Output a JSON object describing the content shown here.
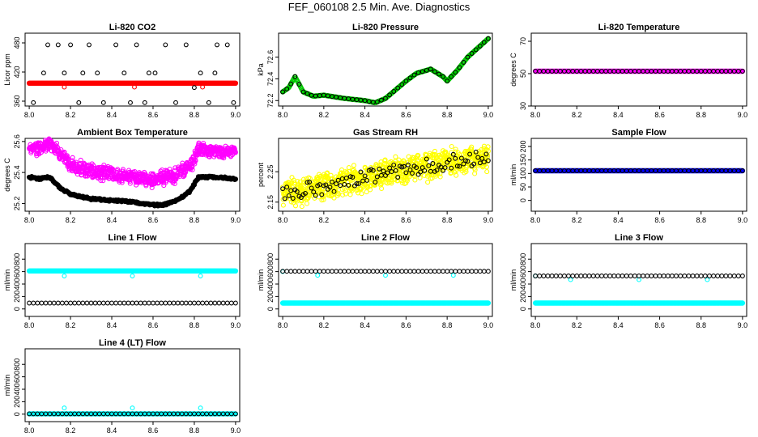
{
  "title": "FEF_060108  2.5 Min. Ave. Diagnostics",
  "chart_data": [
    {
      "id": "co2",
      "type": "scatter",
      "title": "Li-820 CO2",
      "ylabel": "Licor ppm",
      "xlim": [
        7.98,
        9.02
      ],
      "ylim": [
        350,
        500
      ],
      "xticks": [
        8.0,
        8.2,
        8.4,
        8.6,
        8.8,
        9.0
      ],
      "xtick_labels": [
        "8.0",
        "8.2",
        "8.4",
        "8.6",
        "8.8",
        "9.0"
      ],
      "yticks": [
        360,
        420,
        480
      ],
      "ytick_labels": [
        "360",
        "420",
        "480"
      ],
      "grid": false,
      "series": [
        {
          "name": "red",
          "color": "#ff0000",
          "style": "dense",
          "gen": "flat",
          "base": 397,
          "amp": 0,
          "outliers": [
            [
              8.17,
              389
            ],
            [
              8.51,
              389
            ],
            [
              8.84,
              389
            ]
          ]
        },
        {
          "name": "black",
          "color": "#000000",
          "style": "open",
          "points": [
            [
              8.02,
              357
            ],
            [
              8.07,
              418
            ],
            [
              8.09,
              476
            ],
            [
              8.14,
              476
            ],
            [
              8.17,
              418
            ],
            [
              8.2,
              476
            ],
            [
              8.24,
              357
            ],
            [
              8.29,
              476
            ],
            [
              8.33,
              418
            ],
            [
              8.36,
              357
            ],
            [
              8.42,
              476
            ],
            [
              8.46,
              418
            ],
            [
              8.49,
              357
            ],
            [
              8.52,
              476
            ],
            [
              8.56,
              357
            ],
            [
              8.61,
              418
            ],
            [
              8.66,
              476
            ],
            [
              8.71,
              357
            ],
            [
              8.76,
              476
            ],
            [
              8.8,
              388
            ],
            [
              8.83,
              418
            ],
            [
              8.87,
              357
            ],
            [
              8.91,
              476
            ],
            [
              8.96,
              476
            ],
            [
              8.99,
              357
            ],
            [
              8.26,
              418
            ],
            [
              8.58,
              418
            ],
            [
              8.9,
              418
            ]
          ]
        }
      ]
    },
    {
      "id": "pressure",
      "type": "scatter",
      "title": "Li-820 Pressure",
      "ylabel": "kPa",
      "xlim": [
        7.98,
        9.02
      ],
      "ylim": [
        72.15,
        72.82
      ],
      "xticks": [
        8.0,
        8.2,
        8.4,
        8.6,
        8.8,
        9.0
      ],
      "xtick_labels": [
        "8.0",
        "8.2",
        "8.4",
        "8.6",
        "8.8",
        "9.0"
      ],
      "yticks": [
        72.2,
        72.4,
        72.6
      ],
      "ytick_labels": [
        "72.2",
        "72.4",
        "72.6"
      ],
      "grid": false,
      "series": [
        {
          "name": "green",
          "color": "#00cc00",
          "style": "dense",
          "gen": "curve",
          "anchors": [
            [
              8.0,
              72.28
            ],
            [
              8.03,
              72.32
            ],
            [
              8.06,
              72.42
            ],
            [
              8.1,
              72.28
            ],
            [
              8.15,
              72.24
            ],
            [
              8.2,
              72.25
            ],
            [
              8.3,
              72.22
            ],
            [
              8.4,
              72.2
            ],
            [
              8.45,
              72.18
            ],
            [
              8.5,
              72.22
            ],
            [
              8.6,
              72.38
            ],
            [
              8.65,
              72.45
            ],
            [
              8.72,
              72.49
            ],
            [
              8.78,
              72.42
            ],
            [
              8.8,
              72.38
            ],
            [
              8.85,
              72.48
            ],
            [
              8.9,
              72.6
            ],
            [
              9.0,
              72.77
            ]
          ]
        },
        {
          "name": "black",
          "color": "#000000",
          "style": "open",
          "gen": "curve",
          "step": 0.02,
          "anchors": [
            [
              8.0,
              72.28
            ],
            [
              8.03,
              72.32
            ],
            [
              8.06,
              72.42
            ],
            [
              8.1,
              72.28
            ],
            [
              8.15,
              72.24
            ],
            [
              8.2,
              72.25
            ],
            [
              8.3,
              72.22
            ],
            [
              8.4,
              72.2
            ],
            [
              8.45,
              72.18
            ],
            [
              8.5,
              72.22
            ],
            [
              8.6,
              72.38
            ],
            [
              8.65,
              72.45
            ],
            [
              8.72,
              72.49
            ],
            [
              8.78,
              72.42
            ],
            [
              8.8,
              72.38
            ],
            [
              8.85,
              72.48
            ],
            [
              8.9,
              72.6
            ],
            [
              9.0,
              72.77
            ]
          ]
        }
      ]
    },
    {
      "id": "temp",
      "type": "scatter",
      "title": "Li-820 Temperature",
      "ylabel": "degrees C",
      "xlim": [
        7.98,
        9.02
      ],
      "ylim": [
        30,
        75
      ],
      "xticks": [
        8.0,
        8.2,
        8.4,
        8.6,
        8.8,
        9.0
      ],
      "xtick_labels": [
        "8.0",
        "8.2",
        "8.4",
        "8.6",
        "8.8",
        "9.0"
      ],
      "yticks": [
        30,
        50,
        70
      ],
      "ytick_labels": [
        "30",
        "50",
        "70"
      ],
      "grid": false,
      "series": [
        {
          "name": "magenta",
          "color": "#ff00ff",
          "style": "dense",
          "gen": "flat",
          "base": 51.5,
          "amp": 0
        },
        {
          "name": "black",
          "color": "#000000",
          "style": "open",
          "gen": "flat",
          "step": 0.02,
          "base": 51.5,
          "amp": 0
        }
      ]
    },
    {
      "id": "boxtemp",
      "type": "scatter",
      "title": "Ambient Box Temperature",
      "ylabel": "degrees C",
      "xlim": [
        7.98,
        9.02
      ],
      "ylim": [
        25.15,
        25.62
      ],
      "xticks": [
        8.0,
        8.2,
        8.4,
        8.6,
        8.8,
        9.0
      ],
      "xtick_labels": [
        "8.0",
        "8.2",
        "8.4",
        "8.6",
        "8.8",
        "9.0"
      ],
      "yticks": [
        25.2,
        25.4,
        25.6
      ],
      "ytick_labels": [
        "25.2",
        "25.4",
        "25.6"
      ],
      "grid": false,
      "series": [
        {
          "name": "magenta",
          "color": "#ff00ff",
          "style": "cloud",
          "spread": 0.035,
          "gen": "curve",
          "anchors": [
            [
              8.0,
              25.54
            ],
            [
              8.1,
              25.58
            ],
            [
              8.15,
              25.52
            ],
            [
              8.2,
              25.45
            ],
            [
              8.3,
              25.41
            ],
            [
              8.4,
              25.39
            ],
            [
              8.5,
              25.37
            ],
            [
              8.6,
              25.35
            ],
            [
              8.7,
              25.38
            ],
            [
              8.78,
              25.44
            ],
            [
              8.82,
              25.55
            ],
            [
              8.9,
              25.53
            ],
            [
              9.0,
              25.53
            ]
          ]
        },
        {
          "name": "black",
          "color": "#000000",
          "style": "trace",
          "gen": "curve",
          "anchors": [
            [
              8.0,
              25.37
            ],
            [
              8.05,
              25.36
            ],
            [
              8.1,
              25.37
            ],
            [
              8.15,
              25.3
            ],
            [
              8.2,
              25.26
            ],
            [
              8.3,
              25.23
            ],
            [
              8.4,
              25.22
            ],
            [
              8.5,
              25.21
            ],
            [
              8.6,
              25.19
            ],
            [
              8.65,
              25.19
            ],
            [
              8.72,
              25.22
            ],
            [
              8.78,
              25.28
            ],
            [
              8.82,
              25.37
            ],
            [
              8.9,
              25.37
            ],
            [
              9.0,
              25.36
            ]
          ]
        }
      ]
    },
    {
      "id": "rh",
      "type": "scatter",
      "title": "Gas Stream RH",
      "ylabel": "percent",
      "xlim": [
        7.98,
        9.02
      ],
      "ylim": [
        2.12,
        2.36
      ],
      "xticks": [
        8.0,
        8.2,
        8.4,
        8.6,
        8.8,
        9.0
      ],
      "xtick_labels": [
        "8.0",
        "8.2",
        "8.4",
        "8.6",
        "8.8",
        "9.0"
      ],
      "yticks": [
        2.15,
        2.25
      ],
      "ytick_labels": [
        "2.15",
        "2.25"
      ],
      "grid": false,
      "series": [
        {
          "name": "yellow",
          "color": "#ffff00",
          "style": "cloud",
          "spread": 0.035,
          "gen": "curve",
          "anchors": [
            [
              8.0,
              2.18
            ],
            [
              8.2,
              2.2
            ],
            [
              8.4,
              2.23
            ],
            [
              8.6,
              2.26
            ],
            [
              8.8,
              2.28
            ],
            [
              9.0,
              2.3
            ]
          ]
        },
        {
          "name": "black",
          "color": "#000000",
          "style": "scatter",
          "step": 0.01,
          "spread": 0.025,
          "gen": "curve",
          "anchors": [
            [
              8.0,
              2.18
            ],
            [
              8.2,
              2.2
            ],
            [
              8.4,
              2.23
            ],
            [
              8.6,
              2.26
            ],
            [
              8.8,
              2.28
            ],
            [
              9.0,
              2.3
            ]
          ]
        }
      ]
    },
    {
      "id": "sampleflow",
      "type": "scatter",
      "title": "Sample Flow",
      "ylabel": "ml/min",
      "xlim": [
        7.98,
        9.02
      ],
      "ylim": [
        -40,
        230
      ],
      "xticks": [
        8.0,
        8.2,
        8.4,
        8.6,
        8.8,
        9.0
      ],
      "xtick_labels": [
        "8.0",
        "8.2",
        "8.4",
        "8.6",
        "8.8",
        "9.0"
      ],
      "yticks": [
        0,
        50,
        100,
        150,
        200
      ],
      "ytick_labels": [
        "0",
        "50",
        "100",
        "150",
        "200"
      ],
      "grid": false,
      "series": [
        {
          "name": "blue",
          "color": "#0000ff",
          "style": "dense",
          "gen": "flat",
          "base": 110,
          "amp": 0
        },
        {
          "name": "black",
          "color": "#000000",
          "style": "open",
          "gen": "flat",
          "step": 0.02,
          "base": 110,
          "amp": 0
        }
      ]
    },
    {
      "id": "line1",
      "type": "scatter",
      "title": "Line 1 Flow",
      "ylabel": "ml/min",
      "xlim": [
        7.98,
        9.02
      ],
      "ylim": [
        -120,
        1050
      ],
      "xticks": [
        8.0,
        8.2,
        8.4,
        8.6,
        8.8,
        9.0
      ],
      "xtick_labels": [
        "8.0",
        "8.2",
        "8.4",
        "8.6",
        "8.8",
        "9.0"
      ],
      "yticks": [
        0,
        200,
        400,
        600,
        800
      ],
      "ytick_labels": [
        "0",
        "200",
        "400",
        "600",
        "800"
      ],
      "grid": false,
      "series": [
        {
          "name": "cyan",
          "color": "#00ffff",
          "style": "dense",
          "gen": "flat",
          "base": 610,
          "amp": 0,
          "outliers": [
            [
              8.17,
              530
            ],
            [
              8.5,
              530
            ],
            [
              8.83,
              530
            ]
          ]
        },
        {
          "name": "black",
          "color": "#000000",
          "style": "open",
          "gen": "flat",
          "step": 0.02,
          "base": 95,
          "amp": 0
        }
      ]
    },
    {
      "id": "line2",
      "type": "scatter",
      "title": "Line 2 Flow",
      "ylabel": "ml/min",
      "xlim": [
        7.98,
        9.02
      ],
      "ylim": [
        -120,
        1050
      ],
      "xticks": [
        8.0,
        8.2,
        8.4,
        8.6,
        8.8,
        9.0
      ],
      "xtick_labels": [
        "8.0",
        "8.2",
        "8.4",
        "8.6",
        "8.8",
        "9.0"
      ],
      "yticks": [
        0,
        200,
        400,
        600,
        800
      ],
      "ytick_labels": [
        "0",
        "200",
        "400",
        "600",
        "800"
      ],
      "grid": false,
      "series": [
        {
          "name": "cyan",
          "color": "#00ffff",
          "style": "dense",
          "gen": "flat",
          "base": 95,
          "amp": 0,
          "outliers": [
            [
              8.0,
              600
            ],
            [
              8.17,
              540
            ],
            [
              8.5,
              540
            ],
            [
              8.83,
              540
            ]
          ]
        },
        {
          "name": "black",
          "color": "#000000",
          "style": "open",
          "gen": "flat",
          "step": 0.02,
          "base": 605,
          "amp": 0
        }
      ]
    },
    {
      "id": "line3",
      "type": "scatter",
      "title": "Line 3 Flow",
      "ylabel": "ml/min",
      "xlim": [
        7.98,
        9.02
      ],
      "ylim": [
        -120,
        1050
      ],
      "xticks": [
        8.0,
        8.2,
        8.4,
        8.6,
        8.8,
        9.0
      ],
      "xtick_labels": [
        "8.0",
        "8.2",
        "8.4",
        "8.6",
        "8.8",
        "9.0"
      ],
      "yticks": [
        0,
        200,
        400,
        600,
        800
      ],
      "ytick_labels": [
        "0",
        "200",
        "400",
        "600",
        "800"
      ],
      "grid": false,
      "series": [
        {
          "name": "cyan",
          "color": "#00ffff",
          "style": "dense",
          "gen": "flat",
          "base": 95,
          "amp": 0,
          "outliers": [
            [
              8.0,
              530
            ],
            [
              8.17,
              470
            ],
            [
              8.5,
              470
            ],
            [
              8.83,
              470
            ]
          ]
        },
        {
          "name": "black",
          "color": "#000000",
          "style": "open",
          "gen": "flat",
          "step": 0.02,
          "base": 530,
          "amp": 0
        }
      ]
    },
    {
      "id": "line4",
      "type": "scatter",
      "title": "Line 4 (LT) Flow",
      "ylabel": "ml/min",
      "xlim": [
        7.98,
        9.02
      ],
      "ylim": [
        -120,
        1050
      ],
      "xticks": [
        8.0,
        8.2,
        8.4,
        8.6,
        8.8,
        9.0
      ],
      "xtick_labels": [
        "8.0",
        "8.2",
        "8.4",
        "8.6",
        "8.8",
        "9.0"
      ],
      "yticks": [
        0,
        200,
        400,
        600,
        800
      ],
      "ytick_labels": [
        "0",
        "200",
        "400",
        "600",
        "800"
      ],
      "grid": false,
      "series": [
        {
          "name": "cyan",
          "color": "#00ffff",
          "style": "dense",
          "gen": "flat",
          "base": 5,
          "amp": 0,
          "outliers": [
            [
              8.17,
              100
            ],
            [
              8.5,
              100
            ],
            [
              8.83,
              100
            ]
          ]
        },
        {
          "name": "black",
          "color": "#000000",
          "style": "open",
          "gen": "flat",
          "step": 0.02,
          "base": 5,
          "amp": 0
        }
      ]
    }
  ]
}
